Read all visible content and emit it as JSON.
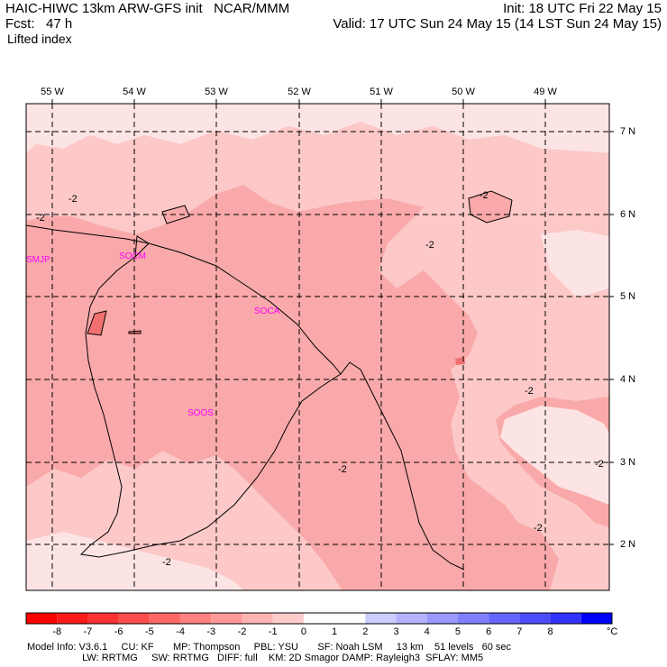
{
  "header": {
    "title": "HAIC-HIWC 13km ARW-GFS init   NCAR/MMM",
    "forecast": "Fcst:   47 h",
    "field": "Lifted index",
    "init": "Init: 18 UTC Fri 22 May 15",
    "valid": "Valid: 17 UTC Sun 24 May 15 (14 LST Sun 24 May 15)"
  },
  "map": {
    "lon_labels": [
      "55 W",
      "54 W",
      "53 W",
      "52 W",
      "51 W",
      "50 W",
      "49 W"
    ],
    "lat_labels": [
      "7 N",
      "6 N",
      "5 N",
      "4 N",
      "3 N",
      "2 N"
    ],
    "stations": [
      "SMJP",
      "SOCM",
      "SOCA",
      "SOOS"
    ],
    "contour_label": "-2",
    "colors": {
      "fill_lightest": "#fde4e4",
      "fill_light": "#fcc8c8",
      "fill_mid": "#f9a9a9",
      "fill_dark": "#f07070",
      "station": "#ff00ff"
    }
  },
  "colorbar": {
    "labels": [
      "-8",
      "-7",
      "-6",
      "-5",
      "-4",
      "-3",
      "-2",
      "-1",
      "0",
      "1",
      "2",
      "3",
      "4",
      "5",
      "6",
      "7",
      "8"
    ],
    "unit": "°C",
    "colors": [
      "#ff0000",
      "#ff1a1a",
      "#ff3333",
      "#ff4d4d",
      "#ff6666",
      "#ff8080",
      "#ff9999",
      "#ffb3b3",
      "#ffcccc",
      "#ffffff",
      "#ffffff",
      "#ccccff",
      "#b3b3ff",
      "#9999ff",
      "#8080ff",
      "#6666ff",
      "#4d4dff",
      "#3333ff",
      "#0000ff"
    ]
  },
  "footer": {
    "line1": "Model Info: V3.6.1     CU: KF       MP: Thompson     PBL: YSU       SF: Noah LSM     13 km    51 levels   60 sec",
    "line2": "                    LW: RRTMG     SW: RRTMG   DIFF: full    KM: 2D Smagor DAMP: Rayleigh3  SFLAY: MM5"
  }
}
